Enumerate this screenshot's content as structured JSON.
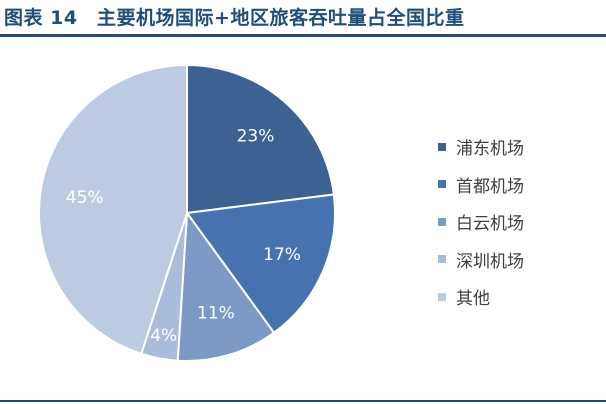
{
  "header": {
    "title": "图表 14　主要机场国际+地区旅客吞吐量占全国比重"
  },
  "chart_data": {
    "type": "pie",
    "title": "",
    "start_angle_deg": 0,
    "direction": "clockwise",
    "slices": [
      {
        "name": "浦东机场",
        "value": 23,
        "label": "23%",
        "color": "#3b6292"
      },
      {
        "name": "首都机场",
        "value": 17,
        "label": "17%",
        "color": "#4673af"
      },
      {
        "name": "白云机场",
        "value": 11,
        "label": "11%",
        "color": "#7d99c6"
      },
      {
        "name": "深圳机场",
        "value": 4,
        "label": "4%",
        "color": "#a9bcdb"
      },
      {
        "name": "其他",
        "value": 45,
        "label": "45%",
        "color": "#bdcbe2"
      }
    ],
    "legend_position": "right"
  }
}
